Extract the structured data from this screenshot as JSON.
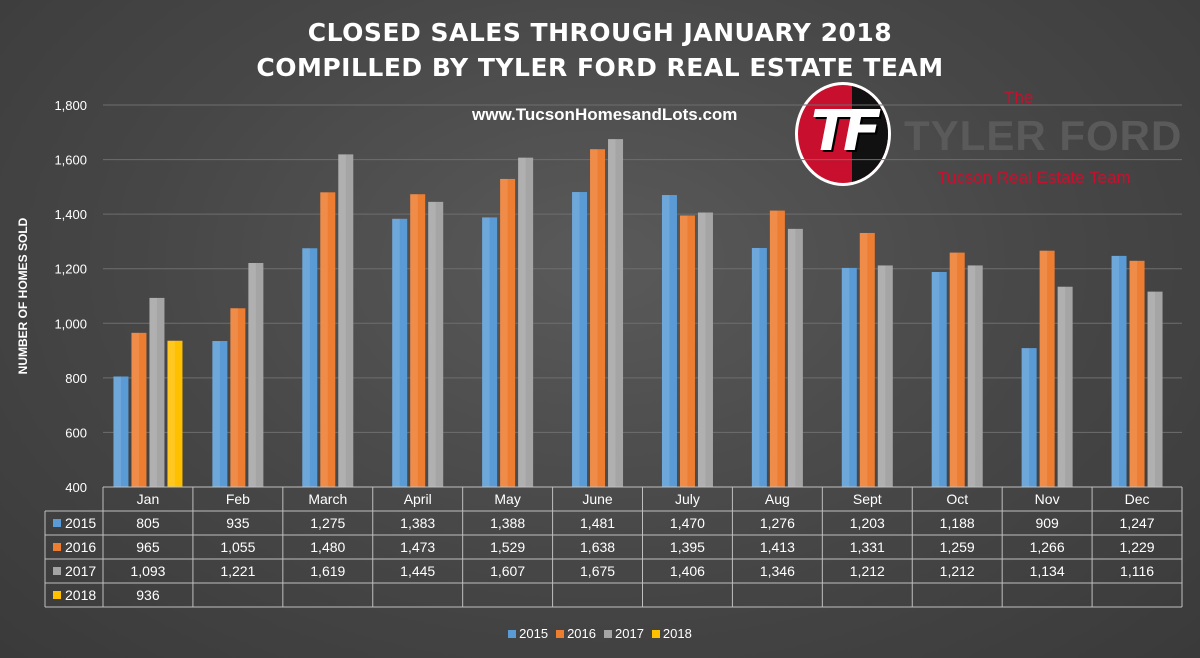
{
  "header": {
    "title_line1": "CLOSED SALES THROUGH JANUARY 2018",
    "title_line2": "COMPILLED BY TYLER FORD REAL ESTATE TEAM",
    "website": "www.TucsonHomesandLots.com"
  },
  "logo": {
    "letters": "TF",
    "the": "The",
    "name": "TYLER FORD",
    "subtitle": "Tucson Real Estate Team"
  },
  "chart_data": {
    "type": "bar",
    "title": "CLOSED SALES THROUGH JANUARY 2018",
    "subtitle": "COMPILLED BY TYLER FORD REAL ESTATE TEAM",
    "ylabel": "NUMBER OF HOMES SOLD",
    "xlabel": "",
    "ylim": [
      400,
      1800
    ],
    "yticks": [
      "400",
      "600",
      "800",
      "1,000",
      "1,200",
      "1,400",
      "1,600",
      "1,800"
    ],
    "grid": true,
    "legend_position": "bottom",
    "categories": [
      "Jan",
      "Feb",
      "March",
      "April",
      "May",
      "June",
      "July",
      "Aug",
      "Sept",
      "Oct",
      "Nov",
      "Dec"
    ],
    "series": [
      {
        "name": "2015",
        "color": "#5b9bd5",
        "values": [
          805,
          935,
          1275,
          1383,
          1388,
          1481,
          1470,
          1276,
          1203,
          1188,
          909,
          1247
        ],
        "labels": [
          "805",
          "935",
          "1,275",
          "1,383",
          "1,388",
          "1,481",
          "1,470",
          "1,276",
          "1,203",
          "1,188",
          "909",
          "1,247"
        ]
      },
      {
        "name": "2016",
        "color": "#ed7d31",
        "values": [
          965,
          1055,
          1480,
          1473,
          1529,
          1638,
          1395,
          1413,
          1331,
          1259,
          1266,
          1229
        ],
        "labels": [
          "965",
          "1,055",
          "1,480",
          "1,473",
          "1,529",
          "1,638",
          "1,395",
          "1,413",
          "1,331",
          "1,259",
          "1,266",
          "1,229"
        ]
      },
      {
        "name": "2017",
        "color": "#a5a5a5",
        "values": [
          1093,
          1221,
          1619,
          1445,
          1607,
          1675,
          1406,
          1346,
          1212,
          1212,
          1134,
          1116
        ],
        "labels": [
          "1,093",
          "1,221",
          "1,619",
          "1,445",
          "1,607",
          "1,675",
          "1,406",
          "1,346",
          "1,212",
          "1,212",
          "1,134",
          "1,116"
        ]
      },
      {
        "name": "2018",
        "color": "#ffc000",
        "values": [
          936,
          null,
          null,
          null,
          null,
          null,
          null,
          null,
          null,
          null,
          null,
          null
        ],
        "labels": [
          "936",
          "",
          "",
          "",
          "",
          "",
          "",
          "",
          "",
          "",
          "",
          ""
        ]
      }
    ]
  }
}
